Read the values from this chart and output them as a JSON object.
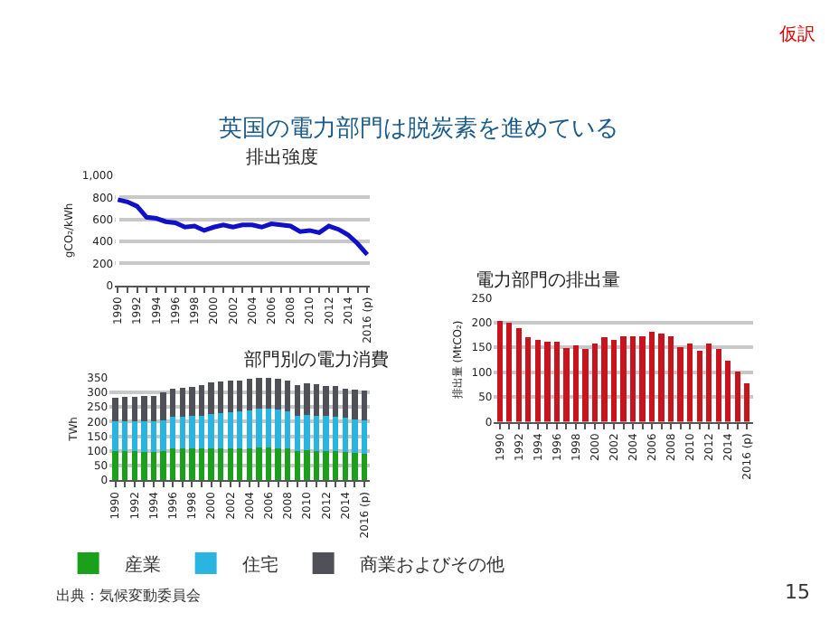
{
  "chart_data": [
    {
      "type": "other",
      "title": "英国の電力部門は脱炭素を進めている",
      "annotations": [
        "仮訳",
        "出典：気候変動委員会",
        "15"
      ]
    },
    {
      "type": "line",
      "title": "排出強度",
      "ylabel": "gCO₂/kWh",
      "categories": [
        "1990",
        null,
        "1992",
        null,
        "1994",
        null,
        "1996",
        null,
        "1998",
        null,
        "2000",
        null,
        "2002",
        null,
        "2004",
        null,
        "2006",
        null,
        "2008",
        null,
        "2010",
        null,
        "2012",
        null,
        "2014",
        null,
        "2016 (p)"
      ],
      "series": [
        {
          "color": "#1010c8",
          "values": [
            780,
            760,
            720,
            620,
            610,
            580,
            570,
            530,
            540,
            500,
            530,
            550,
            530,
            550,
            550,
            530,
            560,
            550,
            540,
            490,
            500,
            480,
            540,
            510,
            460,
            380,
            280
          ]
        }
      ],
      "ylim": [
        0,
        1000
      ],
      "yticks": [
        0,
        200,
        400,
        600,
        800,
        {
          "value": 1000,
          "label": "1,000"
        }
      ],
      "grid": "y",
      "legend": false,
      "marker": "none",
      "line_style": "solid"
    },
    {
      "type": "bar",
      "stacked": true,
      "title": "部門別の電力消費",
      "ylabel": "TWh",
      "categories": [
        "1990",
        null,
        "1992",
        null,
        "1994",
        null,
        "1996",
        null,
        "1998",
        null,
        "2000",
        null,
        "2002",
        null,
        "2004",
        null,
        "2006",
        null,
        "2008",
        null,
        "2010",
        null,
        "2012",
        null,
        "2014",
        null,
        "2016 (p)"
      ],
      "series": [
        {
          "name": "産業",
          "color": "#1aa01a",
          "values": [
            100,
            100,
            100,
            97,
            97,
            100,
            108,
            108,
            108,
            108,
            108,
            108,
            108,
            108,
            108,
            112,
            112,
            110,
            108,
            98,
            102,
            100,
            100,
            98,
            95,
            92,
            90
          ]
        },
        {
          "name": "住宅",
          "color": "#2ab4e0",
          "values": [
            100,
            100,
            100,
            103,
            103,
            105,
            107,
            107,
            112,
            112,
            117,
            120,
            125,
            127,
            130,
            133,
            131,
            130,
            127,
            120,
            120,
            120,
            118,
            117,
            117,
            116,
            115
          ]
        },
        {
          "name": "商業およびその他",
          "color": "#505058",
          "values": [
            80,
            85,
            85,
            88,
            88,
            95,
            97,
            100,
            98,
            105,
            107,
            107,
            105,
            105,
            107,
            105,
            105,
            105,
            105,
            107,
            108,
            108,
            104,
            105,
            100,
            100,
            100
          ]
        }
      ],
      "ylim": [
        0,
        350
      ],
      "yticks": [
        0,
        50,
        100,
        150,
        200,
        250,
        300,
        350
      ],
      "grid": "y",
      "legend": "bottom"
    },
    {
      "type": "bar",
      "title": "電力部門の排出量",
      "ylabel": "排出量 (MtCO₂)",
      "categories": [
        "1990",
        null,
        "1992",
        null,
        "1994",
        null,
        "1996",
        null,
        "1998",
        null,
        "2000",
        null,
        "2002",
        null,
        "2004",
        null,
        "2006",
        null,
        "2008",
        null,
        "2010",
        null,
        "2012",
        null,
        "2014",
        null,
        "2016 (p)"
      ],
      "series": [
        {
          "color": "#c8141e",
          "values": [
            203,
            200,
            188,
            170,
            165,
            162,
            162,
            148,
            155,
            146,
            158,
            170,
            165,
            173,
            173,
            173,
            182,
            178,
            172,
            150,
            157,
            144,
            158,
            147,
            123,
            102,
            78
          ]
        }
      ],
      "ylim": [
        0,
        250
      ],
      "yticks": [
        0,
        50,
        100,
        150,
        200,
        250
      ],
      "grid": "y",
      "legend": false
    }
  ]
}
